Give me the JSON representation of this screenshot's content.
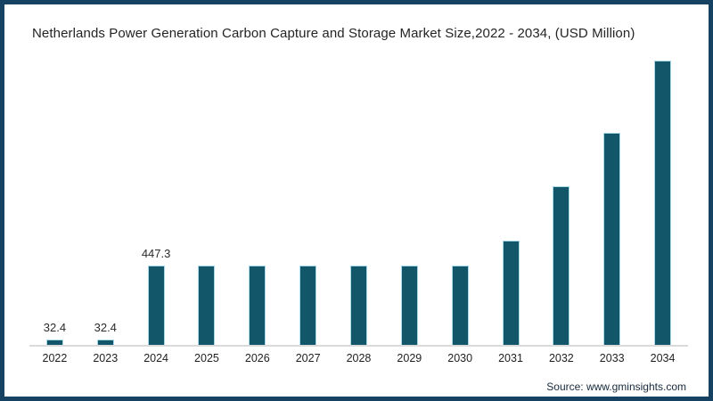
{
  "title": "Netherlands Power Generation Carbon Capture and Storage Market Size,2022 - 2034, (USD Million)",
  "source_credit": "Source: www.gminsights.com",
  "colors": {
    "frame_border": "#154262",
    "bar_fill": "#115769",
    "bar_edge": "#a8d8ea",
    "axis_line": "#dadada",
    "title_text": "#242424",
    "source_text": "#16293c"
  },
  "chart_data": {
    "type": "bar",
    "title": "Netherlands Power Generation Carbon Capture and Storage Market Size,2022 - 2034, (USD Million)",
    "categories": [
      "2022",
      "2023",
      "2024",
      "2025",
      "2026",
      "2027",
      "2028",
      "2029",
      "2030",
      "2031",
      "2032",
      "2033",
      "2034"
    ],
    "values": [
      32.4,
      32.4,
      447.3,
      447.3,
      447.3,
      447.3,
      447.3,
      447.3,
      447.3,
      590,
      900,
      1200,
      1610
    ],
    "data_labels": [
      "32.4",
      "32.4",
      "447.3",
      "",
      "",
      "",
      "",
      "",
      "",
      "",
      "",
      "",
      ""
    ],
    "xlabel": "",
    "ylabel": "",
    "ylim": [
      0,
      1700
    ],
    "grid": false,
    "legend": false,
    "y_axis_visible": false,
    "bar_color": "#115769"
  }
}
